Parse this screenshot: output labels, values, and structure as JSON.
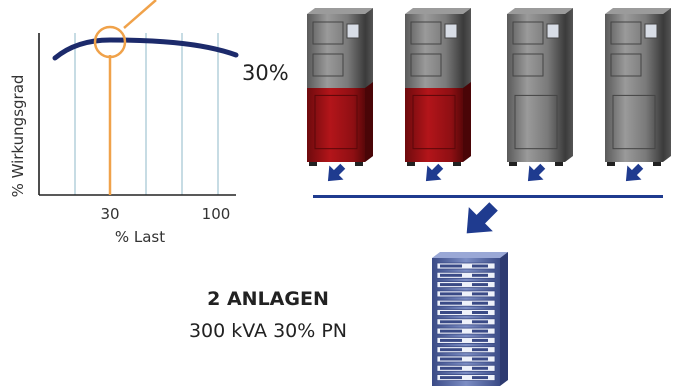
{
  "chart_data": {
    "type": "line",
    "xlabel": "% Last",
    "ylabel": "% Wirkungsgrad",
    "x_ticks": [
      30,
      100
    ],
    "highlight_x": 30
  },
  "callout": {
    "percent_label": "30%"
  },
  "summary": {
    "title": "2 ANLAGEN",
    "detail": "300 kVA 30% PN"
  },
  "colors": {
    "curve": "#1c2a6b",
    "highlight": "#f0a24a",
    "grid": "#8fb8c9",
    "arrow": "#1f3b8f",
    "bus": "#1f3b8f",
    "active_unit": "#a50f14",
    "server_rack": "#6f80b4"
  },
  "icons": {
    "ups_unit": "ups-cabinet-icon",
    "arrow": "arrow-down-icon",
    "rack": "server-rack-icon"
  },
  "units": [
    {
      "state": "active"
    },
    {
      "state": "active"
    },
    {
      "state": "standby"
    },
    {
      "state": "standby"
    }
  ]
}
